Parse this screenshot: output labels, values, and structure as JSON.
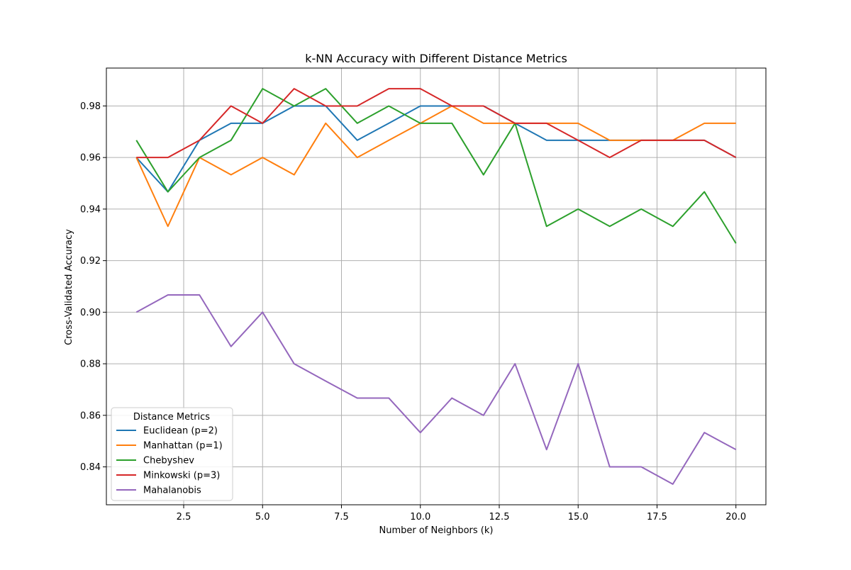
{
  "chart_data": {
    "type": "line",
    "title": "k-NN Accuracy with Different Distance Metrics",
    "xlabel": "Number of Neighbors (k)",
    "ylabel": "Cross-Validated Accuracy",
    "xlim": [
      0.05,
      20.95
    ],
    "ylim": [
      0.8253,
      0.9947
    ],
    "xticks": [
      2.5,
      5.0,
      7.5,
      10.0,
      12.5,
      15.0,
      17.5,
      20.0
    ],
    "xtick_labels": [
      "2.5",
      "5.0",
      "7.5",
      "10.0",
      "12.5",
      "15.0",
      "17.5",
      "20.0"
    ],
    "yticks": [
      0.84,
      0.86,
      0.88,
      0.9,
      0.92,
      0.94,
      0.96,
      0.98
    ],
    "ytick_labels": [
      "0.84",
      "0.86",
      "0.88",
      "0.90",
      "0.92",
      "0.94",
      "0.96",
      "0.98"
    ],
    "grid": true,
    "legend": {
      "title": "Distance Metrics",
      "placement": "lower-left"
    },
    "x": [
      1,
      2,
      3,
      4,
      5,
      6,
      7,
      8,
      9,
      10,
      11,
      12,
      13,
      14,
      15,
      16,
      17,
      18,
      19,
      20
    ],
    "series": [
      {
        "name": "Euclidean (p=2)",
        "color": "#1f77b4",
        "values": [
          0.96,
          0.9467,
          0.9667,
          0.9733,
          0.9733,
          0.98,
          0.98,
          0.9667,
          0.9733,
          0.98,
          0.98,
          0.98,
          0.9733,
          0.9667,
          0.9667,
          0.9667,
          0.9667,
          0.9667,
          0.9667,
          0.96
        ]
      },
      {
        "name": "Manhattan (p=1)",
        "color": "#ff7f0e",
        "values": [
          0.96,
          0.9333,
          0.96,
          0.9533,
          0.96,
          0.9533,
          0.9733,
          0.96,
          0.9667,
          0.9733,
          0.98,
          0.9733,
          0.9733,
          0.9733,
          0.9733,
          0.9667,
          0.9667,
          0.9667,
          0.9733,
          0.9733
        ]
      },
      {
        "name": "Chebyshev",
        "color": "#2ca02c",
        "values": [
          0.9667,
          0.9467,
          0.96,
          0.9667,
          0.9867,
          0.98,
          0.9867,
          0.9733,
          0.98,
          0.9733,
          0.9733,
          0.9533,
          0.9733,
          0.9333,
          0.94,
          0.9333,
          0.94,
          0.9333,
          0.9467,
          0.9267
        ]
      },
      {
        "name": "Minkowski (p=3)",
        "color": "#d62728",
        "values": [
          0.96,
          0.96,
          0.9667,
          0.98,
          0.9733,
          0.9867,
          0.98,
          0.98,
          0.9867,
          0.9867,
          0.98,
          0.98,
          0.9733,
          0.9733,
          0.9667,
          0.96,
          0.9667,
          0.9667,
          0.9667,
          0.96
        ]
      },
      {
        "name": "Mahalanobis",
        "color": "#9467bd",
        "values": [
          0.9,
          0.9067,
          0.9067,
          0.8867,
          0.9,
          0.88,
          0.8733,
          0.8667,
          0.8667,
          0.8533,
          0.8667,
          0.86,
          0.88,
          0.8467,
          0.88,
          0.84,
          0.84,
          0.8333,
          0.8533,
          0.8467
        ]
      }
    ]
  }
}
